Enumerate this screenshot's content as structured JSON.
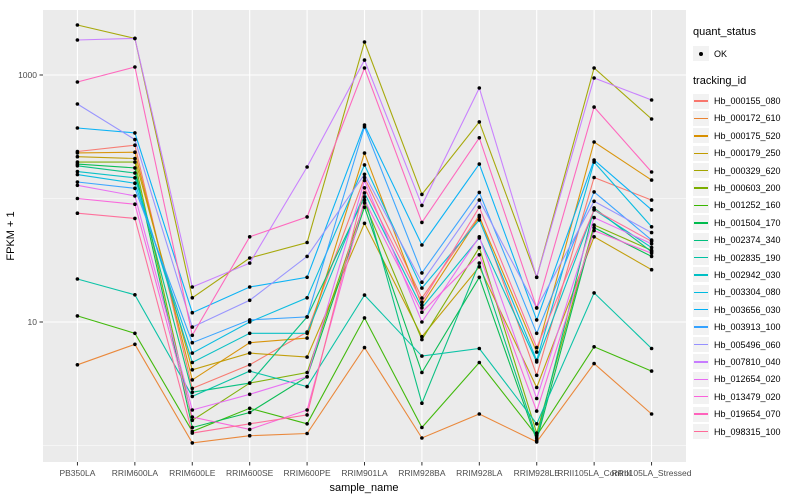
{
  "figure": {
    "y_axis": {
      "title": "FPKM + 1",
      "tick_labels": [
        "1000",
        "10"
      ],
      "tick_values": [
        1000,
        10
      ]
    },
    "x_axis": {
      "title": "sample_name"
    },
    "legend_quant": {
      "title": "quant_status",
      "items": [
        {
          "label": "OK",
          "marker": "point",
          "color": "#000000"
        }
      ]
    },
    "legend_tracking": {
      "title": "tracking_id"
    }
  },
  "chart_data": {
    "type": "line",
    "title": "",
    "xlabel": "sample_name",
    "ylabel": "FPKM + 1",
    "y_scale": "log10",
    "y_ticks_labeled": [
      10,
      1000
    ],
    "y_minor_gridlines": [
      1,
      100
    ],
    "ylim": [
      0.75,
      3300
    ],
    "grid": true,
    "panel_bg": "#EBEBEB",
    "grid_color": "#FFFFFF",
    "point_color": "#000000",
    "legend_position": "right",
    "x_categories": [
      "PB350LA",
      "RRIM600LA",
      "RRIM600LE",
      "RRIM600SE",
      "RRIM600PE",
      "RRIM901LA",
      "RRIM928BA",
      "RRIM928LA",
      "RRIM928LE",
      "RRII105LA_Control",
      "RRII105LA_Stressed"
    ],
    "series": [
      {
        "name": "Hb_000155_080",
        "color": "#F8766D",
        "values": [
          240,
          270,
          2.9,
          4.5,
          8.3,
          148,
          15.6,
          73,
          3.7,
          148,
          97
        ]
      },
      {
        "name": "Hb_000172_610",
        "color": "#EA8331",
        "values": [
          4.5,
          6.6,
          1.05,
          1.2,
          1.25,
          6.2,
          1.15,
          1.8,
          1.07,
          4.6,
          1.8
        ]
      },
      {
        "name": "Hb_000175_520",
        "color": "#D89000",
        "values": [
          234,
          237,
          3.4,
          6.8,
          7.4,
          233,
          13.7,
          71,
          5.7,
          287,
          141
        ]
      },
      {
        "name": "Hb_000179_250",
        "color": "#C09B00",
        "values": [
          218,
          211,
          4.1,
          5.6,
          5.2,
          63,
          7.6,
          28,
          2.95,
          49,
          26.5
        ]
      },
      {
        "name": "Hb_000329_620",
        "color": "#A3A500",
        "values": [
          2540,
          1980,
          15.7,
          33,
          44,
          1850,
          108,
          417,
          23,
          1140,
          440
        ]
      },
      {
        "name": "Hb_000603_200",
        "color": "#7CAE00",
        "values": [
          197,
          197,
          1.6,
          3.2,
          3.9,
          92,
          7.2,
          40,
          1.26,
          61,
          38
        ]
      },
      {
        "name": "Hb_001252_160",
        "color": "#39B600",
        "values": [
          11.2,
          8.1,
          1.3,
          2.0,
          1.5,
          10.8,
          1.4,
          4.7,
          1.2,
          6.3,
          4.0
        ]
      },
      {
        "name": "Hb_001504_170",
        "color": "#00BB4E",
        "values": [
          190,
          177,
          1.4,
          1.85,
          3.6,
          85,
          3.9,
          23,
          1.1,
          58,
          34
        ]
      },
      {
        "name": "Hb_002374_340",
        "color": "#00BF7D",
        "values": [
          184,
          161,
          2.7,
          3.2,
          11,
          103,
          2.2,
          30,
          1.15,
          84,
          37
        ]
      },
      {
        "name": "Hb_002835_190",
        "color": "#00C1A3",
        "values": [
          22.3,
          16.6,
          2.5,
          4.0,
          3.0,
          16.5,
          5.3,
          6.1,
          1.5,
          17.2,
          6.1
        ]
      },
      {
        "name": "Hb_002942_030",
        "color": "#00BFC4",
        "values": [
          165,
          147,
          4.7,
          8.1,
          8.1,
          111,
          13,
          48,
          4.75,
          81,
          40
        ]
      },
      {
        "name": "Hb_003304_080",
        "color": "#00BAE0",
        "values": [
          156,
          133,
          5.6,
          10,
          15.7,
          187,
          18.8,
          67,
          4.9,
          197,
          59
        ]
      },
      {
        "name": "Hb_003656_030",
        "color": "#00B0F6",
        "values": [
          372,
          340,
          11.9,
          19.2,
          23,
          394,
          42,
          190,
          10.4,
          205,
          81
        ]
      },
      {
        "name": "Hb_003913_100",
        "color": "#35A2FF",
        "values": [
          136,
          121,
          6.8,
          10.4,
          11,
          380,
          25,
          112,
          8.1,
          113,
          46
        ]
      },
      {
        "name": "Hb_005496_060",
        "color": "#9590FF",
        "values": [
          582,
          300,
          9.1,
          15,
          34,
          157,
          21,
          97,
          13,
          95,
          53
        ]
      },
      {
        "name": "Hb_007810_040",
        "color": "#C77CFF",
        "values": [
          1920,
          1980,
          19.2,
          30,
          180,
          1320,
          88,
          785,
          23,
          946,
          627
        ]
      },
      {
        "name": "Hb_012654_020",
        "color": "#E76BF3",
        "values": [
          128,
          105,
          1.94,
          2.6,
          3.6,
          140,
          10,
          49,
          2.4,
          70,
          43
        ]
      },
      {
        "name": "Hb_013479_020",
        "color": "#FA62DB",
        "values": [
          100,
          90,
          1.7,
          1.35,
          1.94,
          97,
          12,
          35,
          1.9,
          55,
          36
        ]
      },
      {
        "name": "Hb_019654_070",
        "color": "#FF62BC",
        "values": [
          878,
          1160,
          7.8,
          49,
          71,
          1140,
          64,
          310,
          13,
          550,
          164
        ]
      },
      {
        "name": "Hb_098315_100",
        "color": "#FF6A98",
        "values": [
          76,
          69,
          1.26,
          1.5,
          1.77,
          122,
          14.5,
          85,
          6.2,
          81,
          45
        ]
      }
    ]
  }
}
